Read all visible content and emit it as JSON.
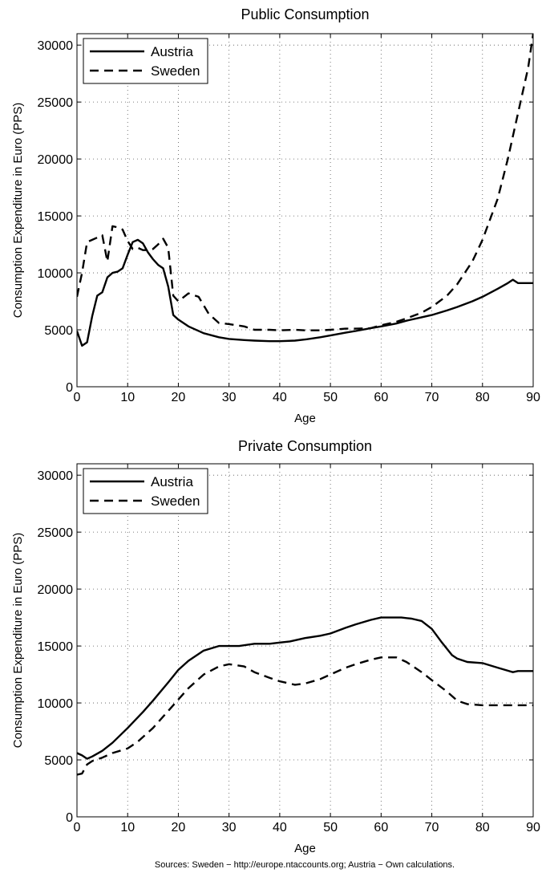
{
  "figure": {
    "source_note": "Sources: Sweden − http://europe.ntaccounts.org; Austria − Own calculations."
  },
  "chart_data": [
    {
      "type": "line",
      "title": "Public Consumption",
      "xlabel": "Age",
      "ylabel": "Consumption Expenditure in Euro (PPS)",
      "xlim": [
        0,
        90
      ],
      "ylim": [
        0,
        31000
      ],
      "xticks": [
        "0",
        "10",
        "20",
        "30",
        "40",
        "50",
        "60",
        "70",
        "80",
        "90"
      ],
      "yticks": [
        "0",
        "5000",
        "10000",
        "15000",
        "20000",
        "25000",
        "30000"
      ],
      "grid": true,
      "legend_position": "top-left",
      "series": [
        {
          "name": "Austria",
          "style": "solid",
          "x": [
            0,
            1,
            2,
            3,
            4,
            5,
            6,
            7,
            8,
            9,
            10,
            11,
            12,
            13,
            14,
            15,
            16,
            17,
            18,
            19,
            20,
            22,
            25,
            28,
            30,
            33,
            35,
            38,
            40,
            43,
            45,
            48,
            50,
            53,
            55,
            58,
            60,
            63,
            65,
            68,
            70,
            73,
            75,
            78,
            80,
            83,
            85,
            86,
            87,
            88,
            89,
            90
          ],
          "y": [
            4900,
            3600,
            3900,
            6200,
            8000,
            8300,
            9600,
            10000,
            10100,
            10400,
            11600,
            12700,
            12900,
            12600,
            11800,
            11200,
            10700,
            10400,
            8800,
            6300,
            5900,
            5300,
            4700,
            4350,
            4200,
            4100,
            4050,
            4000,
            4000,
            4050,
            4150,
            4350,
            4500,
            4750,
            4900,
            5150,
            5300,
            5550,
            5800,
            6100,
            6300,
            6700,
            7000,
            7500,
            7900,
            8600,
            9100,
            9400,
            9100,
            9100,
            9100,
            9100
          ]
        },
        {
          "name": "Sweden",
          "style": "dashed",
          "x": [
            0,
            1,
            2,
            3,
            4,
            5,
            6,
            7,
            8,
            9,
            10,
            11,
            12,
            13,
            14,
            15,
            16,
            17,
            18,
            19,
            20,
            22,
            24,
            26,
            28,
            30,
            33,
            35,
            38,
            40,
            43,
            45,
            48,
            50,
            53,
            55,
            58,
            60,
            63,
            65,
            68,
            70,
            73,
            75,
            78,
            80,
            83,
            85,
            87,
            89,
            90
          ],
          "y": [
            7900,
            10000,
            12700,
            12900,
            13100,
            13300,
            11000,
            14100,
            14000,
            13800,
            12800,
            12100,
            12200,
            12000,
            12000,
            12100,
            12500,
            13000,
            12200,
            8000,
            7500,
            8200,
            7900,
            6400,
            5600,
            5500,
            5300,
            5000,
            5000,
            4950,
            5000,
            4950,
            4950,
            5000,
            5100,
            5100,
            5150,
            5400,
            5700,
            6000,
            6500,
            7000,
            8000,
            9000,
            11000,
            12900,
            16500,
            20000,
            24000,
            28000,
            31000
          ]
        }
      ]
    },
    {
      "type": "line",
      "title": "Private Consumption",
      "xlabel": "Age",
      "ylabel": "Consumption Expenditure in Euro (PPS)",
      "xlim": [
        0,
        90
      ],
      "ylim": [
        0,
        31000
      ],
      "xticks": [
        "0",
        "10",
        "20",
        "30",
        "40",
        "50",
        "60",
        "70",
        "80",
        "90"
      ],
      "yticks": [
        "0",
        "5000",
        "10000",
        "15000",
        "20000",
        "25000",
        "30000"
      ],
      "grid": true,
      "legend_position": "top-left",
      "series": [
        {
          "name": "Austria",
          "style": "solid",
          "x": [
            0,
            1,
            2,
            3,
            5,
            7,
            10,
            13,
            15,
            18,
            20,
            22,
            25,
            28,
            30,
            32,
            35,
            38,
            40,
            42,
            45,
            48,
            50,
            53,
            55,
            58,
            60,
            62,
            64,
            66,
            68,
            70,
            72,
            74,
            75,
            77,
            80,
            83,
            86,
            87,
            88,
            90
          ],
          "y": [
            5600,
            5400,
            5100,
            5300,
            5800,
            6500,
            7800,
            9200,
            10200,
            11800,
            12900,
            13700,
            14600,
            15000,
            15000,
            15000,
            15200,
            15200,
            15300,
            15400,
            15700,
            15900,
            16100,
            16600,
            16900,
            17300,
            17500,
            17500,
            17500,
            17400,
            17200,
            16500,
            15300,
            14200,
            13900,
            13600,
            13500,
            13100,
            12700,
            12800,
            12800,
            12800
          ]
        },
        {
          "name": "Sweden",
          "style": "dashed",
          "x": [
            0,
            1,
            2,
            3,
            5,
            7,
            10,
            12,
            15,
            18,
            20,
            22,
            25,
            28,
            30,
            33,
            35,
            38,
            40,
            43,
            45,
            48,
            50,
            53,
            55,
            58,
            60,
            63,
            65,
            68,
            70,
            73,
            75,
            77,
            80,
            85,
            90
          ],
          "y": [
            3700,
            3800,
            4600,
            4900,
            5200,
            5600,
            6000,
            6600,
            7800,
            9300,
            10300,
            11300,
            12500,
            13200,
            13400,
            13200,
            12700,
            12200,
            11900,
            11600,
            11700,
            12100,
            12500,
            13100,
            13400,
            13800,
            14000,
            14000,
            13600,
            12700,
            12000,
            11000,
            10200,
            9900,
            9800,
            9800,
            9800
          ]
        }
      ]
    }
  ]
}
